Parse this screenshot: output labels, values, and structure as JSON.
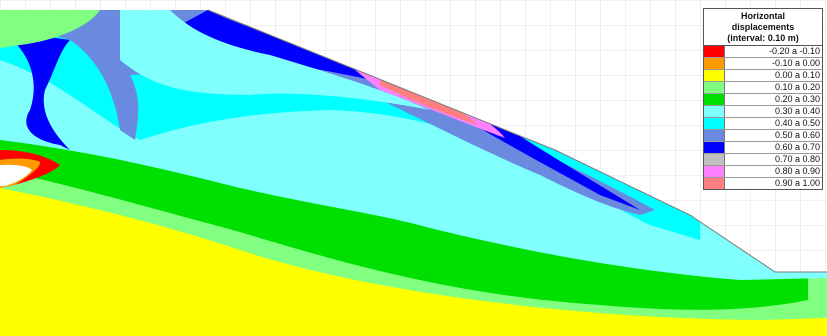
{
  "legend": {
    "title_line1": "Horizontal",
    "title_line2": "displacements",
    "title_line3": "(interval: 0.10 m)",
    "items": [
      {
        "label": "-0.20 a -0.10",
        "color": "#ff0000"
      },
      {
        "label": "-0.10 a 0.00",
        "color": "#ff9900"
      },
      {
        "label": "0.00 a 0.10",
        "color": "#ffff00"
      },
      {
        "label": "0.10 a 0.20",
        "color": "#80ff80"
      },
      {
        "label": "0.20 a 0.30",
        "color": "#00e000"
      },
      {
        "label": "0.30 a 0.40",
        "color": "#80ffff"
      },
      {
        "label": "0.40 a 0.50",
        "color": "#00ffff"
      },
      {
        "label": "0.50 a 0.60",
        "color": "#6a8ae0"
      },
      {
        "label": "0.60 a 0.70",
        "color": "#0000ff"
      },
      {
        "label": "0.70 a 0.80",
        "color": "#c0c0c0"
      },
      {
        "label": "0.80 a 0.90",
        "color": "#ff80ff"
      },
      {
        "label": "0.90 a 1.00",
        "color": "#ff8080"
      }
    ]
  }
}
